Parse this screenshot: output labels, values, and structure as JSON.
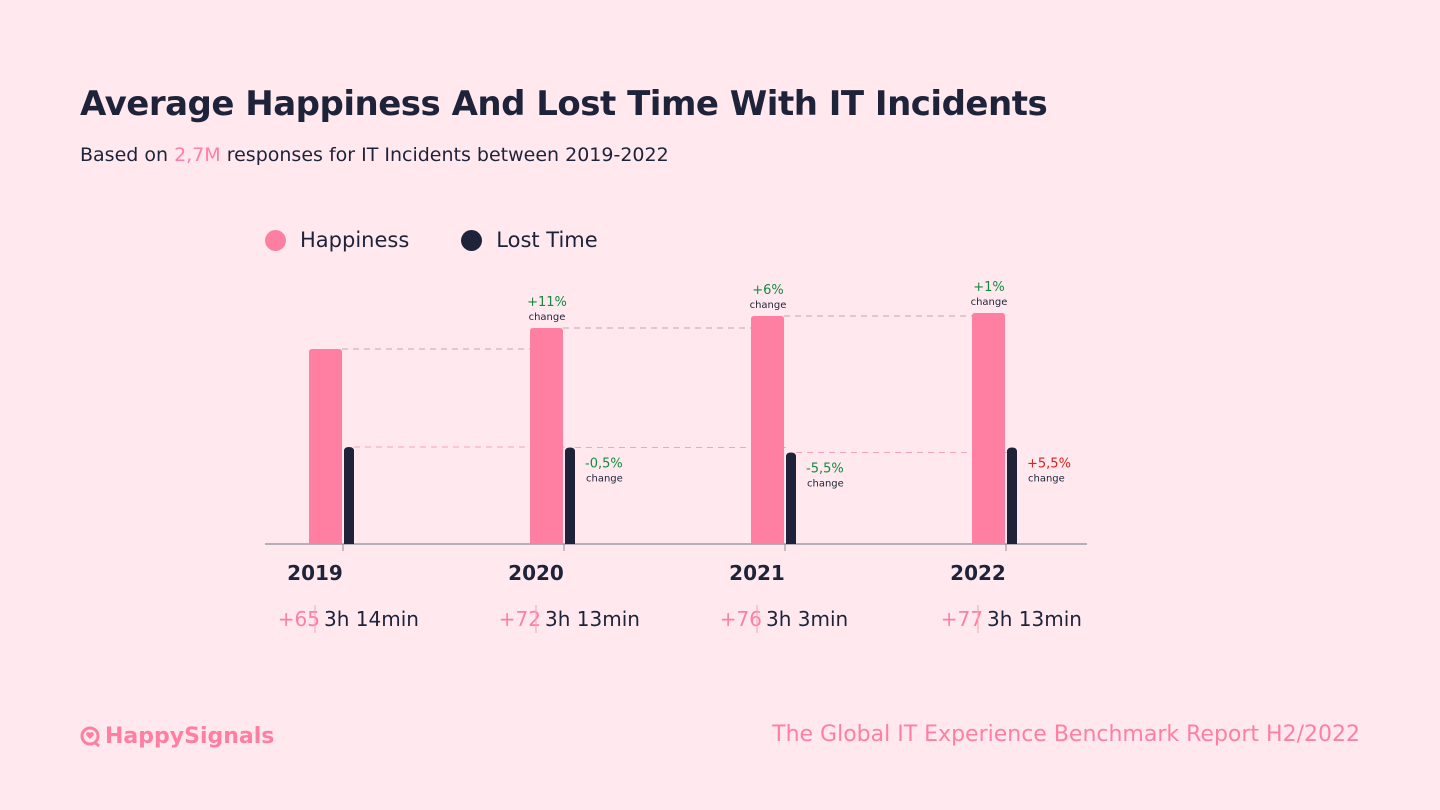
{
  "title": "Average Happiness And Lost Time With IT Incidents",
  "subtitle": {
    "prefix": "Based on ",
    "highlight": "2,7M",
    "suffix": " responses for IT Incidents between 2019-2022"
  },
  "footer": {
    "brand": "HappySignals",
    "report": "The Global IT Experience Benchmark Report H2/2022"
  },
  "colors": {
    "happiness": "#ff7fa3",
    "lost_time": "#1e2339",
    "positive": "#138a3e",
    "negative": "#e0201b",
    "background": "#ffe9ee"
  },
  "chart_data": {
    "type": "bar",
    "categories": [
      "2019",
      "2020",
      "2021",
      "2022"
    ],
    "series": [
      {
        "name": "Happiness",
        "values": [
          65,
          72,
          76,
          77
        ],
        "labels": [
          "+65",
          "+72",
          "+76",
          "+77"
        ],
        "changes": [
          null,
          "+11%",
          "+6%",
          "+1%"
        ],
        "change_colors": [
          null,
          "positive",
          "positive",
          "positive"
        ]
      },
      {
        "name": "Lost Time",
        "values_minutes": [
          194,
          193,
          183,
          193
        ],
        "labels": [
          "3h 14min",
          "3h 13min",
          "3h 3min",
          "3h 13min"
        ],
        "changes": [
          null,
          "-0,5%",
          "-5,5%",
          "+5,5%"
        ],
        "change_colors": [
          null,
          "positive",
          "positive",
          "negative"
        ]
      }
    ],
    "change_word": "change",
    "legend": "top-left",
    "grid": false
  }
}
